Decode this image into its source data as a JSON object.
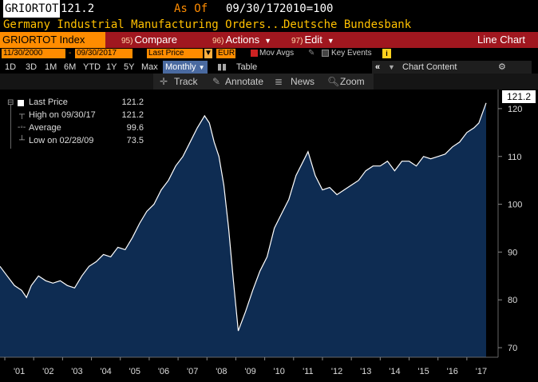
{
  "header": {
    "ticker": "GRIORTOT",
    "last_price": "121.2",
    "as_of_label": "As Of",
    "as_of_date": "09/30/17",
    "base": "2010=100",
    "description": "Germany Industrial Manufacturing Orders...",
    "source": "Deutsche Bundesbank"
  },
  "menubar": {
    "index_label": "GRIORTOT Index",
    "compare": {
      "num": "95)",
      "label": "Compare"
    },
    "actions": {
      "num": "96)",
      "label": "Actions"
    },
    "edit": {
      "num": "97)",
      "label": "Edit"
    },
    "chart_title": "Line Chart"
  },
  "options": {
    "start_date": "11/30/2000",
    "end_date": "09/30/2017",
    "field": "Last Price",
    "period": "Monthly",
    "currency": "EUR",
    "mov_avgs": "Mov Avgs",
    "key_events": "Key Events",
    "info": "i"
  },
  "periods": {
    "items": [
      "1D",
      "3D",
      "1M",
      "6M",
      "YTD",
      "1Y",
      "5Y",
      "Max"
    ],
    "selected": "Monthly",
    "table": "Table",
    "chart_content": "Chart Content"
  },
  "toolbar": {
    "track": "Track",
    "annotate": "Annotate",
    "news": "News",
    "zoom": "Zoom"
  },
  "legend": {
    "last_price_label": "Last Price",
    "last_price_value": "121.2",
    "high_label": "High on 09/30/17",
    "high_value": "121.2",
    "average_label": "Average",
    "average_value": "99.6",
    "low_label": "Low on 02/28/09",
    "low_value": "73.5"
  },
  "price_tag": "121.2",
  "colors": {
    "accent": "#ff8c00",
    "menubar": "#a0171f",
    "fill": "#0e2c52",
    "line": "#ffffff",
    "text_yellow": "#ffc000"
  },
  "chart_data": {
    "type": "area",
    "title": "Germany Industrial Manufacturing Orders",
    "xlabel": "",
    "ylabel": "",
    "ylim": [
      68,
      124
    ],
    "x_ticks": [
      "'01",
      "'02",
      "'03",
      "'04",
      "'05",
      "'06",
      "'07",
      "'08",
      "'09",
      "'10",
      "'11",
      "'12",
      "'13",
      "'14",
      "'15",
      "'16",
      "'17"
    ],
    "y_ticks": [
      70,
      80,
      90,
      100,
      110,
      120
    ],
    "grid": false,
    "legend_placement": "top-left",
    "series": [
      {
        "name": "GRIORTOT Index",
        "points": [
          [
            "2000-11",
            87
          ],
          [
            "2001-02",
            85
          ],
          [
            "2001-05",
            83
          ],
          [
            "2001-08",
            82
          ],
          [
            "2001-10",
            80.5
          ],
          [
            "2001-12",
            83
          ],
          [
            "2002-03",
            85
          ],
          [
            "2002-06",
            84
          ],
          [
            "2002-09",
            83.5
          ],
          [
            "2002-12",
            84
          ],
          [
            "2003-03",
            83
          ],
          [
            "2003-06",
            82.5
          ],
          [
            "2003-09",
            85
          ],
          [
            "2003-12",
            87
          ],
          [
            "2004-03",
            88
          ],
          [
            "2004-06",
            89.5
          ],
          [
            "2004-09",
            89
          ],
          [
            "2004-12",
            91
          ],
          [
            "2005-03",
            90.5
          ],
          [
            "2005-06",
            93
          ],
          [
            "2005-09",
            96
          ],
          [
            "2005-12",
            98.5
          ],
          [
            "2006-03",
            100
          ],
          [
            "2006-06",
            103
          ],
          [
            "2006-09",
            105
          ],
          [
            "2006-12",
            108
          ],
          [
            "2007-03",
            110
          ],
          [
            "2007-06",
            113
          ],
          [
            "2007-09",
            116
          ],
          [
            "2007-12",
            118.5
          ],
          [
            "2008-02",
            117
          ],
          [
            "2008-04",
            113
          ],
          [
            "2008-06",
            110
          ],
          [
            "2008-08",
            104
          ],
          [
            "2008-10",
            95
          ],
          [
            "2008-12",
            84
          ],
          [
            "2009-02",
            73.5
          ],
          [
            "2009-05",
            77.5
          ],
          [
            "2009-08",
            82
          ],
          [
            "2009-11",
            86
          ],
          [
            "2010-02",
            89
          ],
          [
            "2010-05",
            95
          ],
          [
            "2010-08",
            98
          ],
          [
            "2010-11",
            101
          ],
          [
            "2011-02",
            106
          ],
          [
            "2011-05",
            109
          ],
          [
            "2011-07",
            111
          ],
          [
            "2011-10",
            106
          ],
          [
            "2012-01",
            103
          ],
          [
            "2012-04",
            103.5
          ],
          [
            "2012-07",
            102
          ],
          [
            "2012-10",
            103
          ],
          [
            "2013-01",
            104
          ],
          [
            "2013-04",
            105
          ],
          [
            "2013-07",
            107
          ],
          [
            "2013-10",
            108
          ],
          [
            "2014-01",
            108
          ],
          [
            "2014-04",
            109
          ],
          [
            "2014-07",
            107
          ],
          [
            "2014-10",
            109
          ],
          [
            "2015-01",
            109
          ],
          [
            "2015-04",
            108
          ],
          [
            "2015-07",
            110
          ],
          [
            "2015-10",
            109.5
          ],
          [
            "2016-01",
            110
          ],
          [
            "2016-04",
            110.5
          ],
          [
            "2016-07",
            112
          ],
          [
            "2016-10",
            113
          ],
          [
            "2017-01",
            115
          ],
          [
            "2017-04",
            116
          ],
          [
            "2017-06",
            117
          ],
          [
            "2017-09",
            121.2
          ]
        ]
      }
    ]
  }
}
